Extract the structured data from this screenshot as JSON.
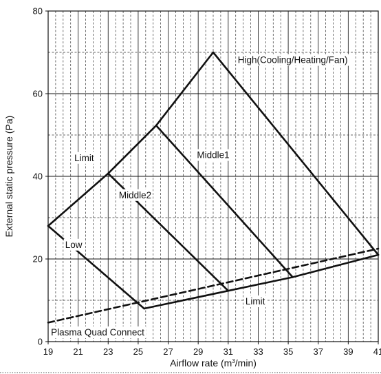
{
  "chart_data": {
    "type": "line",
    "xlabel": "Airflow rate (m³/min)",
    "xlabel_parts": {
      "before": "Airflow rate (m",
      "superscript": "3",
      "after": "/min)"
    },
    "ylabel": "External static pressure (Pa)",
    "xlim": [
      19,
      41
    ],
    "ylim": [
      0,
      80
    ],
    "x_ticks": [
      19,
      21,
      23,
      25,
      27,
      29,
      31,
      33,
      35,
      37,
      39,
      41
    ],
    "x_tick_labels": [
      "19",
      "21",
      "23",
      "25",
      "27",
      "29",
      "31",
      "33",
      "35",
      "37",
      "39",
      "41"
    ],
    "y_ticks": [
      0,
      20,
      40,
      60,
      80
    ],
    "y_tick_labels": [
      "0",
      "20",
      "40",
      "60",
      "80"
    ],
    "grid": {
      "vertical_step": 0.5,
      "solid_every": 2,
      "horizontal_solid": [
        20,
        40,
        60,
        80
      ],
      "horizontal_dashed": [
        10,
        30,
        50,
        70
      ]
    },
    "series": [
      {
        "name": "High(Cooling/Heating/Fan)",
        "style": "solid",
        "points": [
          [
            30.0,
            70.0
          ],
          [
            41.0,
            21.0
          ]
        ]
      },
      {
        "name": "Middle1",
        "style": "solid",
        "points": [
          [
            26.2,
            52.3
          ],
          [
            35.3,
            15.6
          ]
        ]
      },
      {
        "name": "Middle2",
        "style": "solid",
        "points": [
          [
            23.0,
            40.7
          ],
          [
            31.0,
            12.3
          ]
        ]
      },
      {
        "name": "Low",
        "style": "solid",
        "points": [
          [
            19.0,
            28.0
          ],
          [
            25.4,
            8.0
          ]
        ]
      },
      {
        "name": "Limit",
        "style": "solid",
        "points": [
          [
            19.0,
            28.0
          ],
          [
            23.0,
            40.7
          ],
          [
            26.2,
            52.3
          ],
          [
            30.0,
            70.0
          ]
        ]
      },
      {
        "name": "Limit",
        "style": "solid",
        "points": [
          [
            25.4,
            8.0
          ],
          [
            31.0,
            12.3
          ],
          [
            35.3,
            15.6
          ],
          [
            41.0,
            21.0
          ]
        ]
      },
      {
        "name": "Plasma Quad Connect",
        "style": "dashed",
        "points": [
          [
            19.0,
            4.6
          ],
          [
            41.0,
            22.5
          ]
        ]
      }
    ],
    "annotations": [
      {
        "text": "High(Cooling/Heating/Fan)",
        "x": 35.3,
        "y": 68.0
      },
      {
        "text": "Middle1",
        "x": 30.0,
        "y": 45.0
      },
      {
        "text": "Middle2",
        "x": 24.8,
        "y": 35.3
      },
      {
        "text": "Low",
        "x": 20.7,
        "y": 23.3
      },
      {
        "text": "Limit",
        "x": 21.4,
        "y": 44.3
      },
      {
        "text": "Limit",
        "x": 32.8,
        "y": 9.6
      },
      {
        "text": "Plasma Quad Connect",
        "x": 22.3,
        "y": 2.1
      }
    ]
  }
}
